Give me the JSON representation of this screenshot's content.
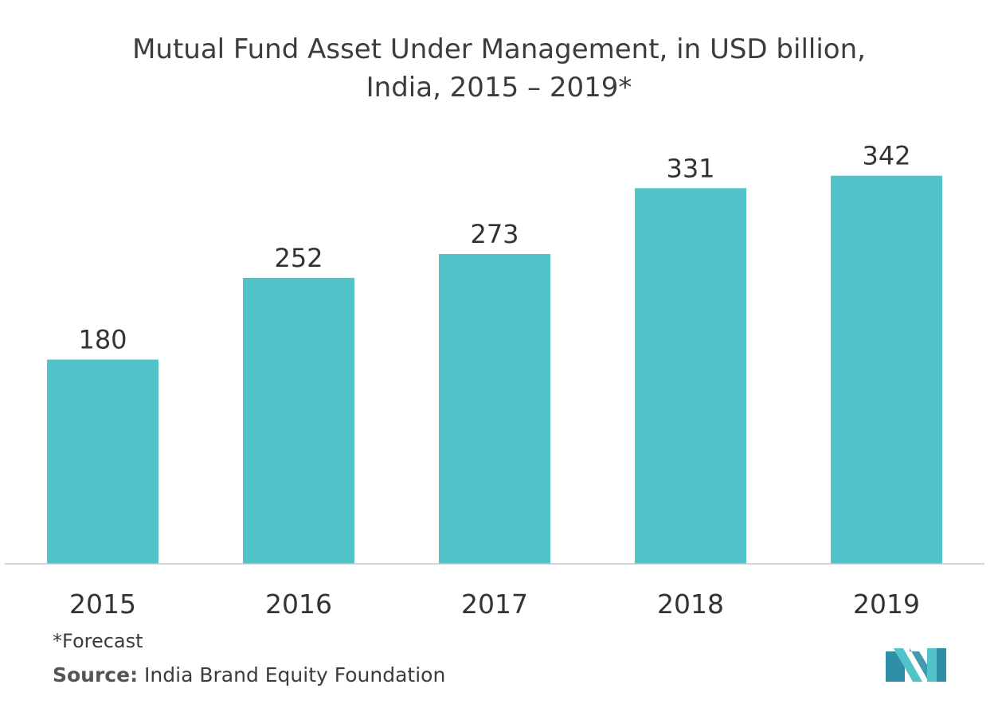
{
  "chart_data": {
    "type": "bar",
    "title": "Mutual Fund Asset Under Management, in USD billion,",
    "subtitle": "India, 2015 – 2019*",
    "categories": [
      "2015",
      "2016",
      "2017",
      "2018",
      "2019"
    ],
    "values": [
      180,
      252,
      273,
      331,
      342
    ],
    "data_labels": [
      "180",
      "252",
      "273",
      "331",
      "342"
    ],
    "xlabel": "",
    "ylabel": "",
    "ylim": [
      0,
      380
    ],
    "grid": false,
    "y_axis_visible": false,
    "bar_color": "#52c3c9"
  },
  "footnote": "*Forecast",
  "source": {
    "label": "Source:",
    "text": "India Brand Equity Foundation"
  },
  "logo": {
    "icon": "mordor-intelligence-logo",
    "colors": [
      "#2f8fa6",
      "#52c3c9"
    ]
  }
}
